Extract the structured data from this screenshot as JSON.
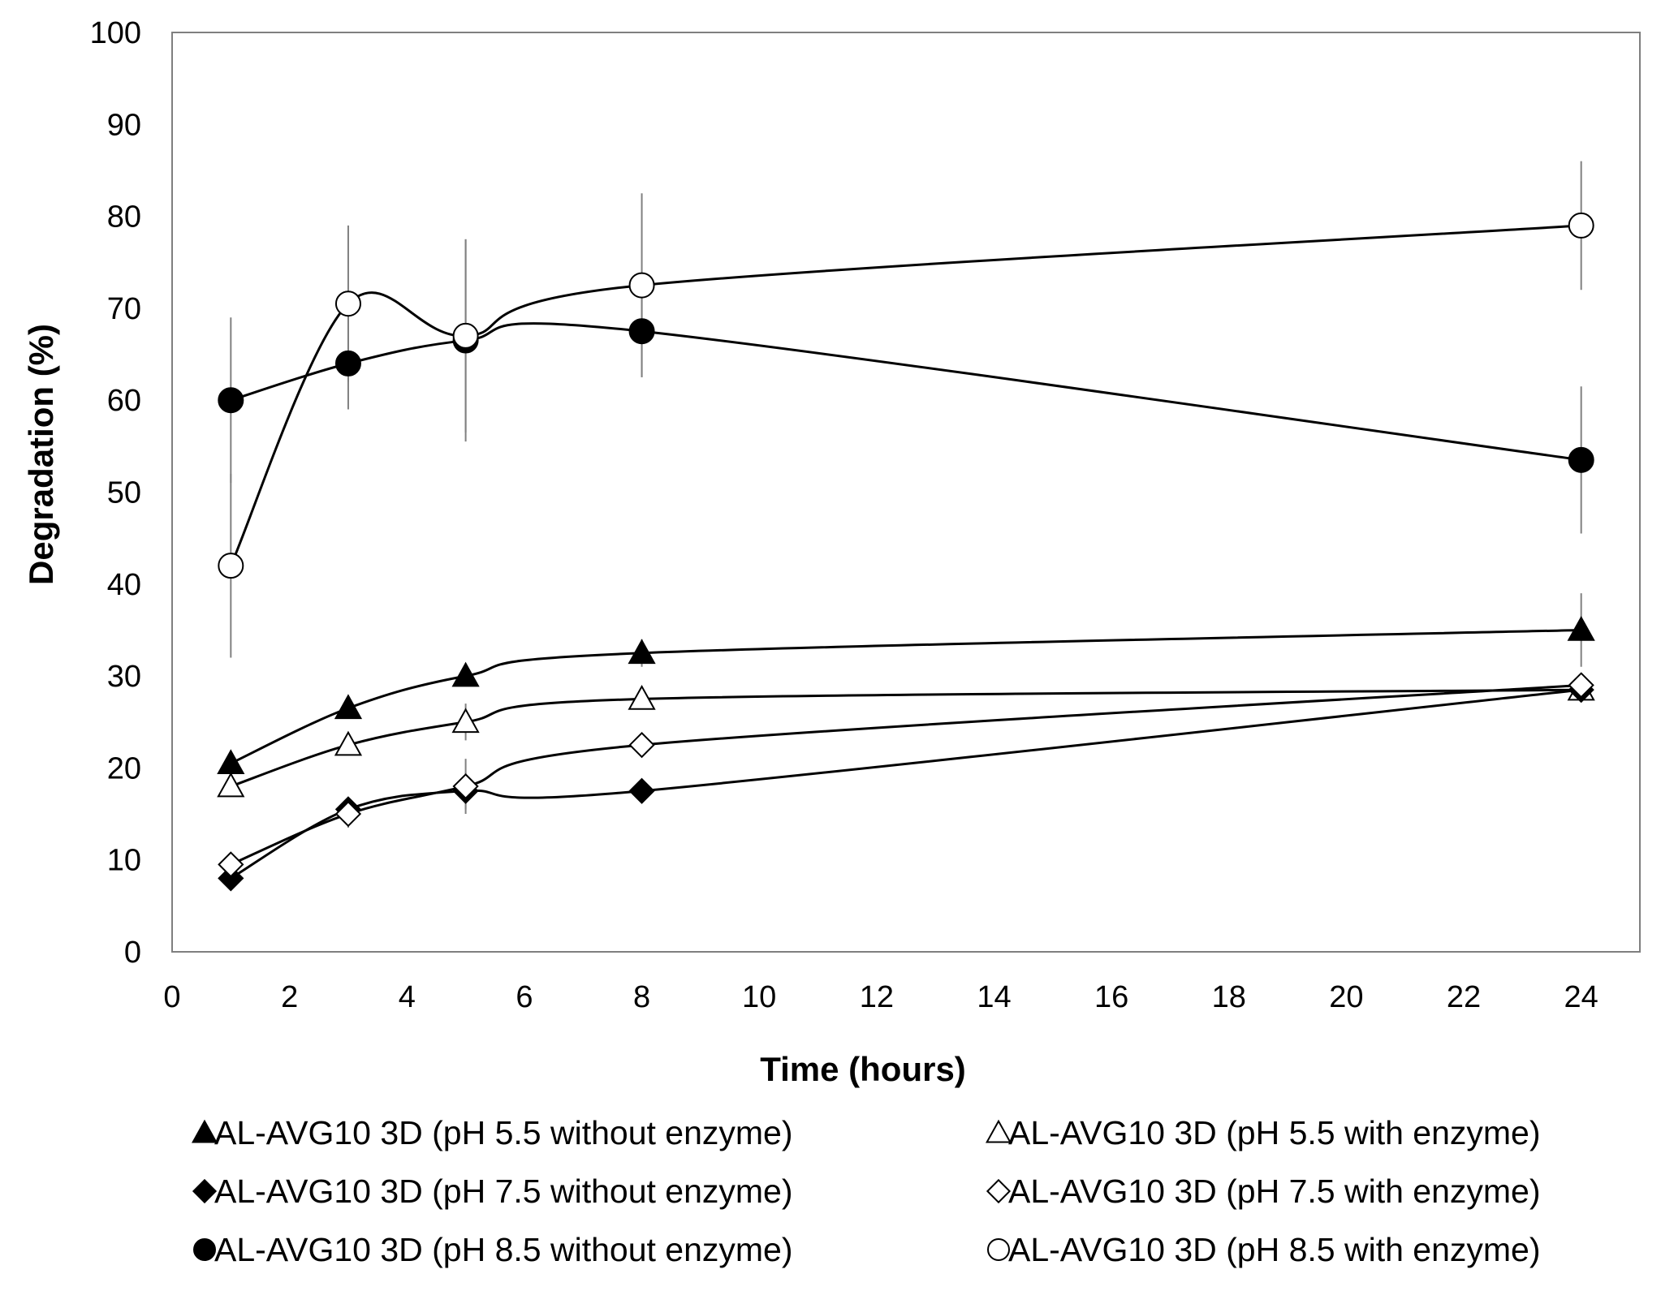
{
  "chart_data": {
    "type": "line",
    "title": "",
    "xlabel": "Time (hours)",
    "ylabel": "Degradation (%)",
    "xlim": [
      0,
      25
    ],
    "ylim": [
      0,
      100
    ],
    "xticks": [
      0,
      2,
      4,
      6,
      8,
      10,
      12,
      14,
      16,
      18,
      20,
      22,
      24
    ],
    "yticks": [
      0,
      10,
      20,
      30,
      40,
      50,
      60,
      70,
      80,
      90,
      100
    ],
    "x": [
      1,
      3,
      5,
      8,
      24
    ],
    "grid": false,
    "legend_position": "bottom",
    "series": [
      {
        "name": "AL-AVG10 3D (pH 5.5 without enzyme)",
        "marker": "triangle",
        "filled": true,
        "values": [
          20.5,
          26.5,
          30,
          32.5,
          35
        ],
        "errors": [
          0.5,
          0.5,
          0.5,
          1.5,
          4
        ]
      },
      {
        "name": "AL-AVG10 3D (pH 5.5 with enzyme)",
        "marker": "triangle",
        "filled": false,
        "values": [
          18,
          22.5,
          25,
          27.5,
          28.5
        ],
        "errors": [
          0.5,
          1,
          2,
          1,
          0.5
        ]
      },
      {
        "name": "AL-AVG10 3D (pH 7.5 without enzyme)",
        "marker": "diamond",
        "filled": true,
        "values": [
          8,
          15.5,
          17.5,
          17.5,
          28.5
        ],
        "errors": [
          0.5,
          1,
          2,
          0.5,
          0.5
        ]
      },
      {
        "name": "AL-AVG10 3D (pH 7.5 with enzyme)",
        "marker": "diamond",
        "filled": false,
        "values": [
          9.5,
          15,
          18,
          22.5,
          29
        ],
        "errors": [
          0.5,
          1.5,
          3,
          0.5,
          0.5
        ]
      },
      {
        "name": "AL-AVG10 3D (pH 8.5 without enzyme)",
        "marker": "circle",
        "filled": true,
        "values": [
          60,
          64,
          66.5,
          67.5,
          53.5
        ],
        "errors": [
          9,
          5,
          11,
          5,
          8
        ]
      },
      {
        "name": "AL-AVG10 3D (pH 8.5 with enzyme)",
        "marker": "circle",
        "filled": false,
        "values": [
          42,
          70.5,
          67,
          72.5,
          79
        ],
        "errors": [
          10,
          8.5,
          10.5,
          10,
          7
        ]
      }
    ]
  }
}
